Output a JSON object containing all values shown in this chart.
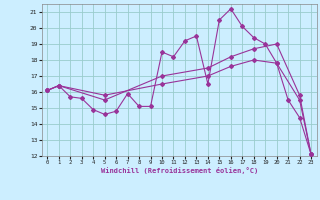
{
  "xlabel": "Windchill (Refroidissement éolien,°C)",
  "bg_color": "#cceeff",
  "grid_color": "#99cccc",
  "line_color": "#993399",
  "xlim": [
    -0.5,
    23.5
  ],
  "ylim": [
    12,
    21.5
  ],
  "xticks": [
    0,
    1,
    2,
    3,
    4,
    5,
    6,
    7,
    8,
    9,
    10,
    11,
    12,
    13,
    14,
    15,
    16,
    17,
    18,
    19,
    20,
    21,
    22,
    23
  ],
  "yticks": [
    12,
    13,
    14,
    15,
    16,
    17,
    18,
    19,
    20,
    21
  ],
  "line1_x": [
    0,
    1,
    2,
    3,
    4,
    5,
    6,
    7,
    8,
    9,
    10,
    11,
    12,
    13,
    14,
    15,
    16,
    17,
    18,
    19,
    20,
    21,
    22,
    23
  ],
  "line1_y": [
    16.1,
    16.4,
    15.7,
    15.6,
    14.9,
    14.6,
    14.8,
    15.9,
    15.1,
    15.1,
    18.5,
    18.2,
    19.2,
    19.5,
    16.5,
    20.5,
    21.2,
    20.1,
    19.4,
    19.0,
    17.8,
    15.5,
    14.4,
    12.1
  ],
  "line2_x": [
    0,
    1,
    5,
    10,
    14,
    16,
    18,
    20,
    22,
    23
  ],
  "line2_y": [
    16.1,
    16.4,
    15.5,
    17.0,
    17.5,
    18.2,
    18.7,
    19.0,
    15.8,
    12.1
  ],
  "line3_x": [
    0,
    1,
    5,
    10,
    14,
    16,
    18,
    20,
    22,
    23
  ],
  "line3_y": [
    16.1,
    16.4,
    15.8,
    16.5,
    17.0,
    17.6,
    18.0,
    17.8,
    15.5,
    12.1
  ]
}
